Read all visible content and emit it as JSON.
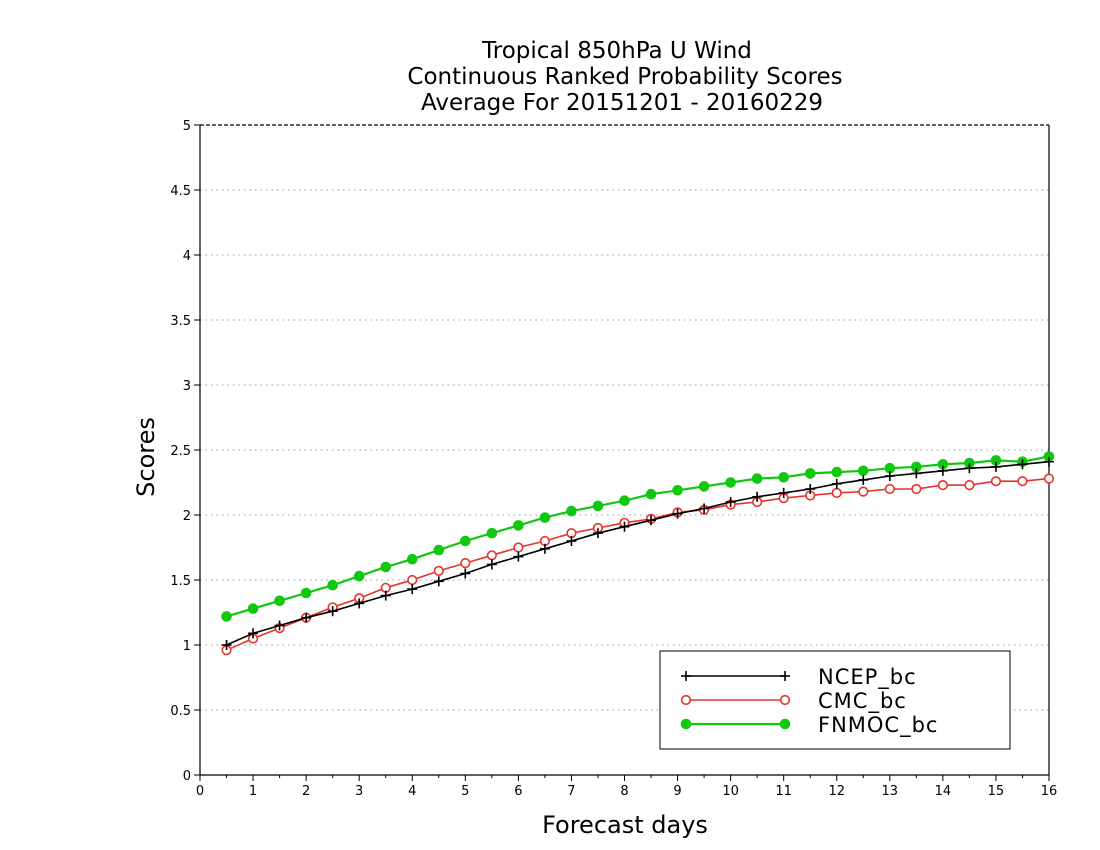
{
  "chart_data": {
    "type": "line",
    "title": [
      "Tropical 850hPa U Wind",
      "Continuous Ranked Probability Scores",
      "Average For 20151201 - 20160229"
    ],
    "xlabel": "Forecast days",
    "ylabel": "Scores",
    "xlim": [
      0,
      16
    ],
    "ylim": [
      0,
      5
    ],
    "xticks": [
      0,
      1,
      2,
      3,
      4,
      5,
      6,
      7,
      8,
      9,
      10,
      11,
      12,
      13,
      14,
      15,
      16
    ],
    "yticks": [
      0,
      0.5,
      1,
      1.5,
      2,
      2.5,
      3,
      3.5,
      4,
      4.5,
      5
    ],
    "ytick_labels": [
      "0",
      "0.5",
      "1",
      "1.5",
      "2",
      "2.5",
      "3",
      "3.5",
      "4",
      "4.5",
      "5"
    ],
    "grid": true,
    "legend_position": "bottom-right",
    "x": [
      0.5,
      1,
      1.5,
      2,
      2.5,
      3,
      3.5,
      4,
      4.5,
      5,
      5.5,
      6,
      6.5,
      7,
      7.5,
      8,
      8.5,
      9,
      9.5,
      10,
      10.5,
      11,
      11.5,
      12,
      12.5,
      13,
      13.5,
      14,
      14.5,
      15,
      15.5,
      16
    ],
    "series": [
      {
        "name": "NCEP_bc",
        "color": "#000000",
        "marker": "plus",
        "values": [
          1.0,
          1.09,
          1.15,
          1.21,
          1.26,
          1.32,
          1.38,
          1.43,
          1.49,
          1.55,
          1.62,
          1.68,
          1.74,
          1.8,
          1.86,
          1.91,
          1.96,
          2.01,
          2.05,
          2.1,
          2.14,
          2.17,
          2.2,
          2.24,
          2.27,
          2.3,
          2.32,
          2.34,
          2.36,
          2.37,
          2.39,
          2.41
        ]
      },
      {
        "name": "CMC_bc",
        "color": "#e8322a",
        "marker": "open-circle",
        "values": [
          0.96,
          1.05,
          1.13,
          1.21,
          1.29,
          1.36,
          1.44,
          1.5,
          1.57,
          1.63,
          1.69,
          1.75,
          1.8,
          1.86,
          1.9,
          1.94,
          1.97,
          2.02,
          2.04,
          2.08,
          2.1,
          2.13,
          2.15,
          2.17,
          2.18,
          2.2,
          2.2,
          2.23,
          2.23,
          2.26,
          2.26,
          2.28
        ]
      },
      {
        "name": "FNMOC_bc",
        "color": "#10c810",
        "marker": "filled-circle",
        "values": [
          1.22,
          1.28,
          1.34,
          1.4,
          1.46,
          1.53,
          1.6,
          1.66,
          1.73,
          1.8,
          1.86,
          1.92,
          1.98,
          2.03,
          2.07,
          2.11,
          2.16,
          2.19,
          2.22,
          2.25,
          2.28,
          2.29,
          2.32,
          2.33,
          2.34,
          2.36,
          2.37,
          2.39,
          2.4,
          2.42,
          2.41,
          2.45
        ]
      }
    ]
  }
}
